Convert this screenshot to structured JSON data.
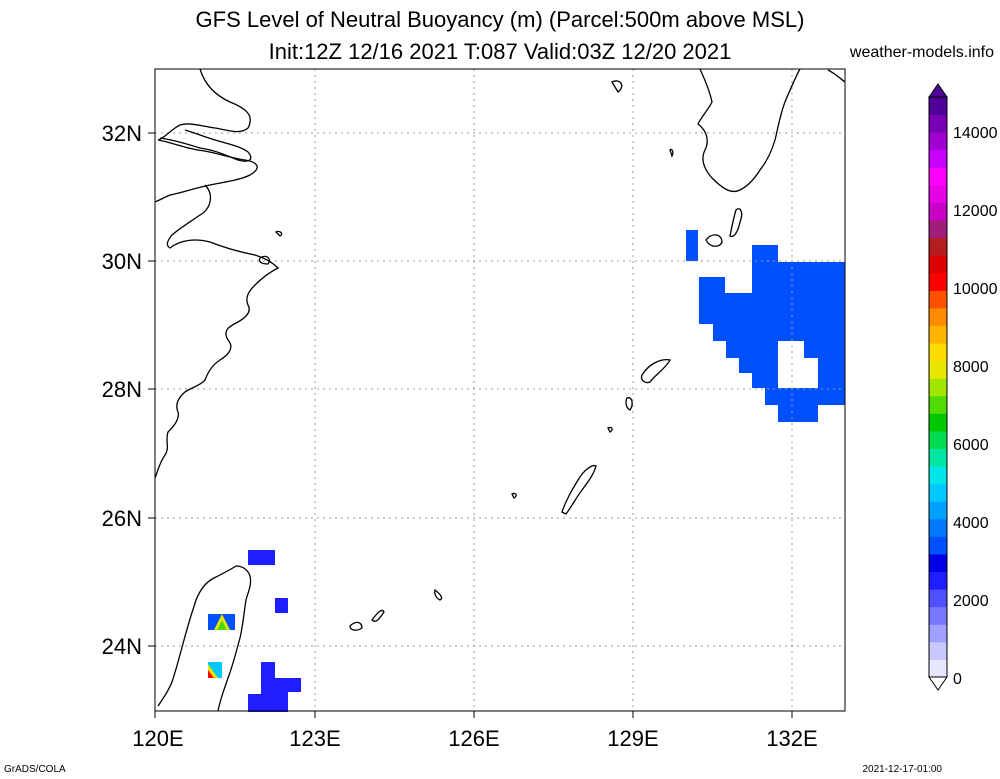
{
  "title": {
    "line1": "GFS Level of Neutral Buoyancy (m) (Parcel:500m above MSL)",
    "line2": "Init:12Z 12/16 2021 T:087 Valid:03Z 12/20 2021"
  },
  "site": "weather-models.info",
  "footer": {
    "left": "GrADS/COLA",
    "right": "2021-12-17-01:00"
  },
  "axes": {
    "lat_labels": [
      "32N",
      "30N",
      "28N",
      "26N",
      "24N"
    ],
    "lon_labels": [
      "120E",
      "123E",
      "126E",
      "129E",
      "132E"
    ]
  },
  "colorbar": {
    "labels": [
      "14000",
      "12000",
      "10000",
      "8000",
      "6000",
      "4000",
      "2000",
      "0"
    ],
    "colors": [
      "#e6e6ff",
      "#c8c8ff",
      "#a0a0ff",
      "#7878ff",
      "#5050ff",
      "#1e1eff",
      "#0000e6",
      "#0050ff",
      "#0078ff",
      "#00a0ff",
      "#00c8ff",
      "#00e6e6",
      "#00e6a0",
      "#00dc50",
      "#00c800",
      "#50dc00",
      "#a0e600",
      "#e6e600",
      "#ffdc00",
      "#ffb400",
      "#ff8c00",
      "#ff5000",
      "#ff0000",
      "#dc0000",
      "#b41e1e",
      "#a01e78",
      "#c800c8",
      "#e600e6",
      "#ff00ff",
      "#c800ff",
      "#a000d2",
      "#7800b4",
      "#500096"
    ]
  },
  "field_colors": {
    "blue": "#0050ff",
    "dark_blue": "#1e1eff",
    "cyan": "#00c8ff",
    "green": "#50dc00",
    "yellow": "#e6e600",
    "red": "#ff0000"
  }
}
